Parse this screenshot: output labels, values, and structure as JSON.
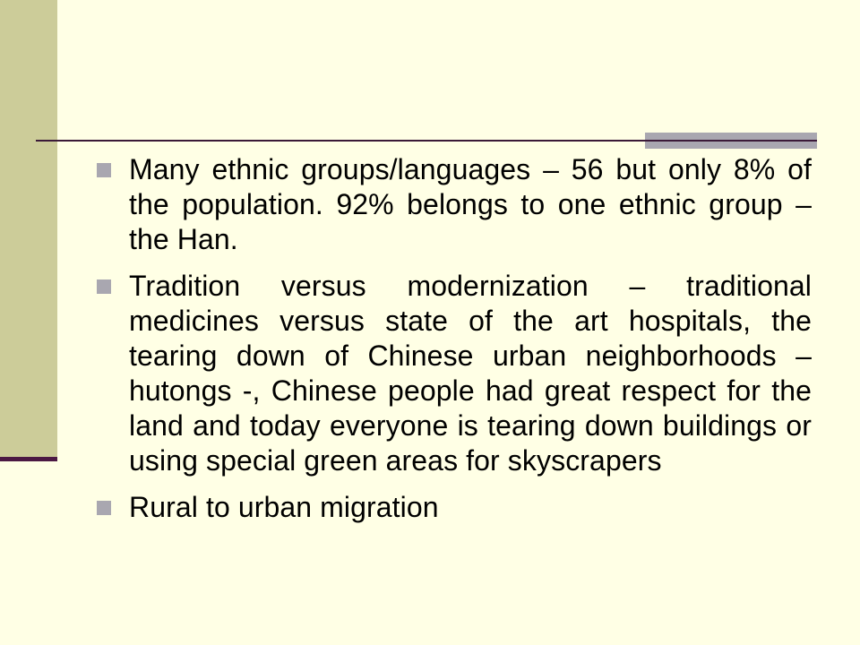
{
  "slide": {
    "colors": {
      "background": "#FFFFE5",
      "side_bar": "#CCCC99",
      "accent": "#A9A7B0",
      "rule": "#3B1A38",
      "bullet": "#A9A7B0",
      "text": "#000000"
    },
    "bullets": [
      {
        "icon": "square-bullet-icon",
        "text": "Many ethnic groups/languages – 56 but only 8% of the population. 92% belongs to one ethnic group – the Han."
      },
      {
        "icon": "square-bullet-icon",
        "text": "Tradition versus modernization – traditional medicines versus state of the art hospitals, the tearing down of Chinese urban neighborhoods – hutongs -, Chinese people had great respect for the land and today everyone is tearing down buildings or using special green areas for skyscrapers"
      },
      {
        "icon": "square-bullet-icon",
        "text": "Rural to urban migration"
      }
    ]
  }
}
